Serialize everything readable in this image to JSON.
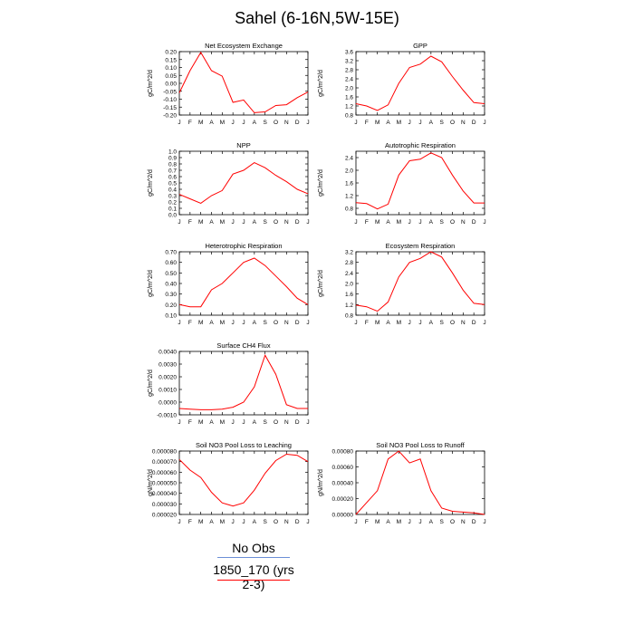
{
  "title": "Sahel (6-16N,5W-15E)",
  "colors": {
    "model": "#ff0000",
    "obs": "#6b8fd6"
  },
  "legend": {
    "obs_label": "No Obs",
    "model_label": "1850_170 (yrs 2-3)"
  },
  "chart_data": [
    {
      "type": "line",
      "title": "Net Ecosystem Exchange",
      "ylabel": "gC/m^2/d",
      "ylim": [
        -0.2,
        0.2
      ],
      "yticks": [
        "0.20",
        "0.15",
        "0.10",
        "0.05",
        "0.00",
        "-0.05",
        "-0.10",
        "-0.15",
        "-0.20"
      ],
      "x": [
        "J",
        "F",
        "M",
        "A",
        "M",
        "J",
        "J",
        "A",
        "S",
        "O",
        "N",
        "D",
        "J"
      ],
      "series": [
        {
          "values": [
            -0.06,
            0.08,
            0.195,
            0.08,
            0.045,
            -0.12,
            -0.105,
            -0.185,
            -0.18,
            -0.14,
            -0.135,
            -0.09,
            -0.055
          ]
        }
      ]
    },
    {
      "type": "line",
      "title": "GPP",
      "ylabel": "gC/m^2/d",
      "ylim": [
        0.8,
        3.6
      ],
      "yticks": [
        "3.6",
        "3.2",
        "2.8",
        "2.4",
        "2.0",
        "1.6",
        "1.2",
        "0.8"
      ],
      "x": [
        "J",
        "F",
        "M",
        "A",
        "M",
        "J",
        "J",
        "A",
        "S",
        "O",
        "N",
        "D",
        "J"
      ],
      "series": [
        {
          "values": [
            1.3,
            1.2,
            1.0,
            1.25,
            2.2,
            2.9,
            3.05,
            3.4,
            3.15,
            2.5,
            1.9,
            1.35,
            1.3
          ]
        }
      ]
    },
    {
      "type": "line",
      "title": "NPP",
      "ylabel": "gC/m^2/d",
      "ylim": [
        0.0,
        1.0
      ],
      "yticks": [
        "1.0",
        "0.9",
        "0.8",
        "0.7",
        "0.6",
        "0.5",
        "0.4",
        "0.3",
        "0.2",
        "0.1",
        "0.0"
      ],
      "x": [
        "J",
        "F",
        "M",
        "A",
        "M",
        "J",
        "J",
        "A",
        "S",
        "O",
        "N",
        "D",
        "J"
      ],
      "series": [
        {
          "values": [
            0.32,
            0.25,
            0.18,
            0.3,
            0.38,
            0.64,
            0.7,
            0.82,
            0.74,
            0.62,
            0.52,
            0.4,
            0.33
          ]
        }
      ]
    },
    {
      "type": "line",
      "title": "Autotrophic Respiration",
      "ylabel": "gC/m^2/d",
      "ylim": [
        0.6,
        2.6
      ],
      "yticks": [
        "2.4",
        "2.0",
        "1.6",
        "1.2",
        "0.8"
      ],
      "x": [
        "J",
        "F",
        "M",
        "A",
        "M",
        "J",
        "J",
        "A",
        "S",
        "O",
        "N",
        "D",
        "J"
      ],
      "series": [
        {
          "values": [
            0.98,
            0.95,
            0.78,
            0.93,
            1.85,
            2.3,
            2.35,
            2.55,
            2.4,
            1.85,
            1.35,
            0.97,
            0.97
          ]
        }
      ]
    },
    {
      "type": "line",
      "title": "Heterotrophic Respiration",
      "ylabel": "gC/m^2/d",
      "ylim": [
        0.1,
        0.7
      ],
      "yticks": [
        "0.70",
        "0.60",
        "0.50",
        "0.40",
        "0.30",
        "0.20",
        "0.10"
      ],
      "x": [
        "J",
        "F",
        "M",
        "A",
        "M",
        "J",
        "J",
        "A",
        "S",
        "O",
        "N",
        "D",
        "J"
      ],
      "series": [
        {
          "values": [
            0.2,
            0.18,
            0.18,
            0.34,
            0.4,
            0.5,
            0.6,
            0.64,
            0.57,
            0.47,
            0.37,
            0.26,
            0.2
          ]
        }
      ]
    },
    {
      "type": "line",
      "title": "Ecosystem Respiration",
      "ylabel": "gC/m^2/d",
      "ylim": [
        0.8,
        3.2
      ],
      "yticks": [
        "3.2",
        "2.8",
        "2.4",
        "2.0",
        "1.6",
        "1.2",
        "0.8"
      ],
      "x": [
        "J",
        "F",
        "M",
        "A",
        "M",
        "J",
        "J",
        "A",
        "S",
        "O",
        "N",
        "D",
        "J"
      ],
      "series": [
        {
          "values": [
            1.18,
            1.12,
            0.95,
            1.3,
            2.25,
            2.8,
            2.95,
            3.2,
            3.0,
            2.4,
            1.75,
            1.25,
            1.2
          ]
        }
      ]
    },
    {
      "type": "line",
      "title": "Surface CH4 Flux",
      "ylabel": "gC/m^2/d",
      "ylim": [
        -0.001,
        0.004
      ],
      "yticks": [
        "0.0040",
        "0.0030",
        "0.0020",
        "0.0010",
        "0.0000",
        "-0.0010"
      ],
      "x": [
        "J",
        "F",
        "M",
        "A",
        "M",
        "J",
        "J",
        "A",
        "S",
        "O",
        "N",
        "D",
        "J"
      ],
      "series": [
        {
          "values": [
            -0.0005,
            -0.00055,
            -0.0006,
            -0.0006,
            -0.00055,
            -0.0004,
            0.0,
            0.0012,
            0.0037,
            0.0022,
            -0.0002,
            -0.0005,
            -0.0005
          ]
        }
      ]
    },
    {
      "type": "line",
      "title": "Soil NO3 Pool Loss to Leaching",
      "ylabel": "gN/m^2/d",
      "ylim": [
        2e-05,
        8e-05
      ],
      "yticks": [
        "0.000080",
        "0.000070",
        "0.000060",
        "0.000050",
        "0.000040",
        "0.000030",
        "0.000020"
      ],
      "x": [
        "J",
        "F",
        "M",
        "A",
        "M",
        "J",
        "J",
        "A",
        "S",
        "O",
        "N",
        "D",
        "J"
      ],
      "series": [
        {
          "values": [
            7.2e-05,
            6.2e-05,
            5.5e-05,
            4.1e-05,
            3.1e-05,
            2.8e-05,
            3.1e-05,
            4.3e-05,
            5.9e-05,
            7.1e-05,
            7.7e-05,
            7.6e-05,
            7e-05
          ]
        }
      ]
    },
    {
      "type": "line",
      "title": "Soil NO3 Pool Loss to Runoff",
      "ylabel": "gN/m^2/d",
      "ylim": [
        0.0,
        0.0008
      ],
      "yticks": [
        "0.00080",
        "0.00060",
        "0.00040",
        "0.00020",
        "0.00000"
      ],
      "x": [
        "J",
        "F",
        "M",
        "A",
        "M",
        "J",
        "J",
        "A",
        "S",
        "O",
        "N",
        "D",
        "J"
      ],
      "series": [
        {
          "values": [
            0.0,
            0.00015,
            0.0003,
            0.0007,
            0.0008,
            0.00065,
            0.0007,
            0.0003,
            8e-05,
            4e-05,
            3e-05,
            2e-05,
            0.0
          ]
        }
      ]
    }
  ]
}
